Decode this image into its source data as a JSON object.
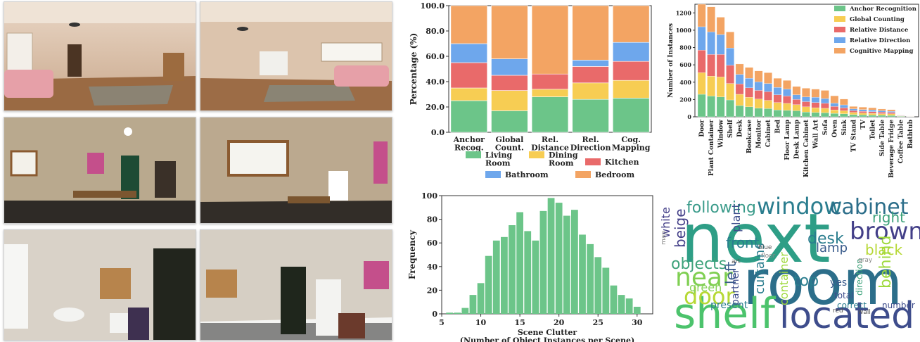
{
  "stacked_legend": [
    {
      "label": "Living\nRoom",
      "color": "#6cc589"
    },
    {
      "label": "Dining\nRoom",
      "color": "#f7cd53"
    },
    {
      "label": "Kitchen",
      "color": "#e96a6a"
    },
    {
      "label": "Bathroom",
      "color": "#6ea7ec"
    },
    {
      "label": "Bedroom",
      "color": "#f3a463"
    }
  ],
  "chart_data": [
    {
      "type": "bar",
      "stacked": true,
      "categories": [
        "Anchor\nRecog.",
        "Global\nCount.",
        "Rel.\nDistance",
        "Rel.\nDirection",
        "Cog.\nMapping"
      ],
      "ylabel": "Percentage (%)",
      "ylim": [
        0,
        100
      ],
      "yticks": [
        "0.0",
        "20.0",
        "40.0",
        "60.0",
        "80.0",
        "100.0"
      ],
      "legend_placement": "bottom",
      "series": [
        {
          "name": "Living Room",
          "color": "#6cc589",
          "values": [
            25,
            17,
            28,
            26,
            27
          ]
        },
        {
          "name": "Dining Room",
          "color": "#f7cd53",
          "values": [
            10,
            16,
            6,
            13,
            14
          ]
        },
        {
          "name": "Kitchen",
          "color": "#e96a6a",
          "values": [
            20,
            12,
            12,
            13,
            15
          ]
        },
        {
          "name": "Bathroom",
          "color": "#6ea7ec",
          "values": [
            15,
            13,
            0,
            5,
            15
          ]
        },
        {
          "name": "Bedroom",
          "color": "#f3a463",
          "values": [
            30,
            42,
            54,
            43,
            29
          ]
        }
      ]
    },
    {
      "type": "bar",
      "stacked": true,
      "categories": [
        "Door",
        "Plant Container",
        "Window",
        "Shelf",
        "Desk",
        "Bookcase",
        "Monitor",
        "Cabinet",
        "Bed",
        "Floor Lamp",
        "Desk Lamp",
        "Kitchen Cabinet",
        "Wall Art",
        "Sofa",
        "Oven",
        "Sink",
        "TV Stand",
        "TV",
        "Toilet",
        "Side Table",
        "Beverage Fridge",
        "Coffee Table",
        "Bathtub"
      ],
      "ylabel": "Number of Instances",
      "ylim": [
        0,
        1300
      ],
      "yticks": [
        "0",
        "200",
        "400",
        "600",
        "800",
        "1000",
        "1200"
      ],
      "legend_placement": "top-right",
      "series": [
        {
          "name": "Anchor Recognition",
          "color": "#6cc589",
          "values": [
            260,
            240,
            230,
            195,
            130,
            115,
            100,
            95,
            80,
            75,
            70,
            55,
            50,
            48,
            40,
            35,
            25,
            22,
            20,
            18,
            16,
            6,
            2
          ]
        },
        {
          "name": "Global Counting",
          "color": "#f7cd53",
          "values": [
            250,
            230,
            230,
            190,
            130,
            110,
            105,
            95,
            85,
            80,
            70,
            60,
            55,
            50,
            40,
            35,
            25,
            22,
            20,
            18,
            18,
            4,
            2
          ]
        },
        {
          "name": "Relative Distance",
          "color": "#e96a6a",
          "values": [
            260,
            250,
            260,
            210,
            120,
            110,
            100,
            100,
            90,
            85,
            60,
            60,
            60,
            58,
            40,
            35,
            22,
            20,
            20,
            18,
            16,
            4,
            2
          ]
        },
        {
          "name": "Relative Direction",
          "color": "#6ea7ec",
          "values": [
            270,
            260,
            230,
            200,
            110,
            110,
            100,
            95,
            85,
            80,
            55,
            55,
            60,
            55,
            38,
            33,
            20,
            20,
            20,
            16,
            14,
            4,
            2
          ]
        },
        {
          "name": "Cognitive Mapping",
          "color": "#f3a463",
          "values": [
            260,
            290,
            200,
            185,
            120,
            125,
            125,
            125,
            105,
            100,
            95,
            100,
            95,
            94,
            85,
            67,
            28,
            28,
            25,
            20,
            18,
            2,
            2
          ]
        }
      ]
    },
    {
      "type": "bar",
      "histogram": true,
      "color": "#6cc589",
      "x": [
        6,
        7,
        8,
        9,
        10,
        11,
        12,
        13,
        14,
        15,
        16,
        17,
        18,
        19,
        20,
        21,
        22,
        23,
        24,
        25,
        26,
        27,
        28,
        29,
        30
      ],
      "values": [
        1,
        1,
        5,
        16,
        26,
        49,
        62,
        65,
        75,
        86,
        70,
        62,
        87,
        98,
        94,
        83,
        88,
        67,
        59,
        48,
        39,
        24,
        16,
        13,
        6
      ],
      "xlabel": "Scene Clutter\n(Number of Object Instances per Scene)",
      "ylabel": "Frequency",
      "xlim": [
        5,
        32
      ],
      "ylim": [
        0,
        100
      ],
      "xticks": [
        "5",
        "10",
        "15",
        "20",
        "25",
        "30"
      ],
      "yticks": [
        "0",
        "20",
        "40",
        "60",
        "80",
        "100"
      ]
    }
  ],
  "word_cloud": [
    {
      "text": "next",
      "color": "#2e9e86",
      "size": 96,
      "x": 968,
      "y": 372
    },
    {
      "text": "room",
      "color": "#2c6e8a",
      "size": 88,
      "x": 1056,
      "y": 432
    },
    {
      "text": "shelf",
      "color": "#4cc36c",
      "size": 60,
      "x": 958,
      "y": 466
    },
    {
      "text": "located",
      "color": "#3e4d8c",
      "size": 52,
      "x": 1108,
      "y": 466
    },
    {
      "text": "window",
      "color": "#2a7d8e",
      "size": 32,
      "x": 1076,
      "y": 304
    },
    {
      "text": "cabinet",
      "color": "#2c6e8a",
      "size": 30,
      "x": 1180,
      "y": 304
    },
    {
      "text": "brown",
      "color": "#433f88",
      "size": 34,
      "x": 1208,
      "y": 340
    },
    {
      "text": "following",
      "color": "#3a9b8a",
      "size": 22,
      "x": 976,
      "y": 302
    },
    {
      "text": "near",
      "color": "#7fcf52",
      "size": 36,
      "x": 960,
      "y": 406
    },
    {
      "text": "door",
      "color": "#b6d834",
      "size": 32,
      "x": 972,
      "y": 432
    },
    {
      "text": "objects",
      "color": "#3da27a",
      "size": 22,
      "x": 954,
      "y": 382
    },
    {
      "text": "beige",
      "color": "#433f88",
      "size": 20,
      "x": 974,
      "y": 352
    },
    {
      "text": "desk",
      "color": "#2a7d8e",
      "size": 22,
      "x": 1148,
      "y": 346
    },
    {
      "text": "right",
      "color": "#3da27a",
      "size": 20,
      "x": 1240,
      "y": 316
    },
    {
      "text": "black",
      "color": "#b6d834",
      "size": 20,
      "x": 1230,
      "y": 362
    },
    {
      "text": "front",
      "color": "#2a7d8e",
      "size": 20,
      "x": 1032,
      "y": 352
    },
    {
      "text": "lamp",
      "color": "#3a5c8c",
      "size": 18,
      "x": 1160,
      "y": 358
    },
    {
      "text": "plant",
      "color": "#3e4d8c",
      "size": 16,
      "x": 1052,
      "y": 330
    },
    {
      "text": "green",
      "color": "#86d15a",
      "size": 16,
      "x": 980,
      "y": 414
    },
    {
      "text": "white",
      "color": "#433f88",
      "size": 16,
      "x": 952,
      "y": 338
    },
    {
      "text": "top",
      "color": "#2a7d8e",
      "size": 22,
      "x": 1128,
      "y": 406
    },
    {
      "text": "yes",
      "color": "#3a5c8c",
      "size": 14,
      "x": 1180,
      "y": 406
    },
    {
      "text": "left",
      "color": "#3a5c8c",
      "size": 20,
      "x": 1046,
      "y": 404
    },
    {
      "text": "curtains",
      "color": "#2a7d8e",
      "size": 18,
      "x": 1086,
      "y": 418
    },
    {
      "text": "container",
      "color": "#9dd93b",
      "size": 16,
      "x": 1120,
      "y": 434
    },
    {
      "text": "behind",
      "color": "#9dd93b",
      "size": 22,
      "x": 1266,
      "y": 410
    },
    {
      "text": "partner",
      "color": "#3e4d8c",
      "size": 14,
      "x": 1050,
      "y": 434
    },
    {
      "text": "present",
      "color": "#2a7d8e",
      "size": 14,
      "x": 1010,
      "y": 438
    },
    {
      "text": "number",
      "color": "#3e4d8c",
      "size": 12,
      "x": 1254,
      "y": 438
    },
    {
      "text": "correct",
      "color": "#2a7d8e",
      "size": 12,
      "x": 1190,
      "y": 438
    },
    {
      "text": "total",
      "color": "#3e4d8c",
      "size": 12,
      "x": 1186,
      "y": 424
    },
    {
      "text": "direction",
      "color": "#3da27a",
      "size": 12,
      "x": 1226,
      "y": 420
    },
    {
      "text": "gray",
      "color": "#888888",
      "size": 9,
      "x": 1220,
      "y": 372
    },
    {
      "text": "floor",
      "color": "#888888",
      "size": 9,
      "x": 1082,
      "y": 366
    },
    {
      "text": "blue",
      "color": "#555555",
      "size": 9,
      "x": 1078,
      "y": 354
    },
    {
      "text": "red",
      "color": "#555555",
      "size": 9,
      "x": 1184,
      "y": 444
    },
    {
      "text": "wall",
      "color": "#555555",
      "size": 9,
      "x": 1220,
      "y": 446
    },
    {
      "text": "map",
      "color": "#888888",
      "size": 9,
      "x": 946,
      "y": 348
    },
    {
      "text": "art",
      "color": "#555555",
      "size": 9,
      "x": 1040,
      "y": 374
    }
  ]
}
